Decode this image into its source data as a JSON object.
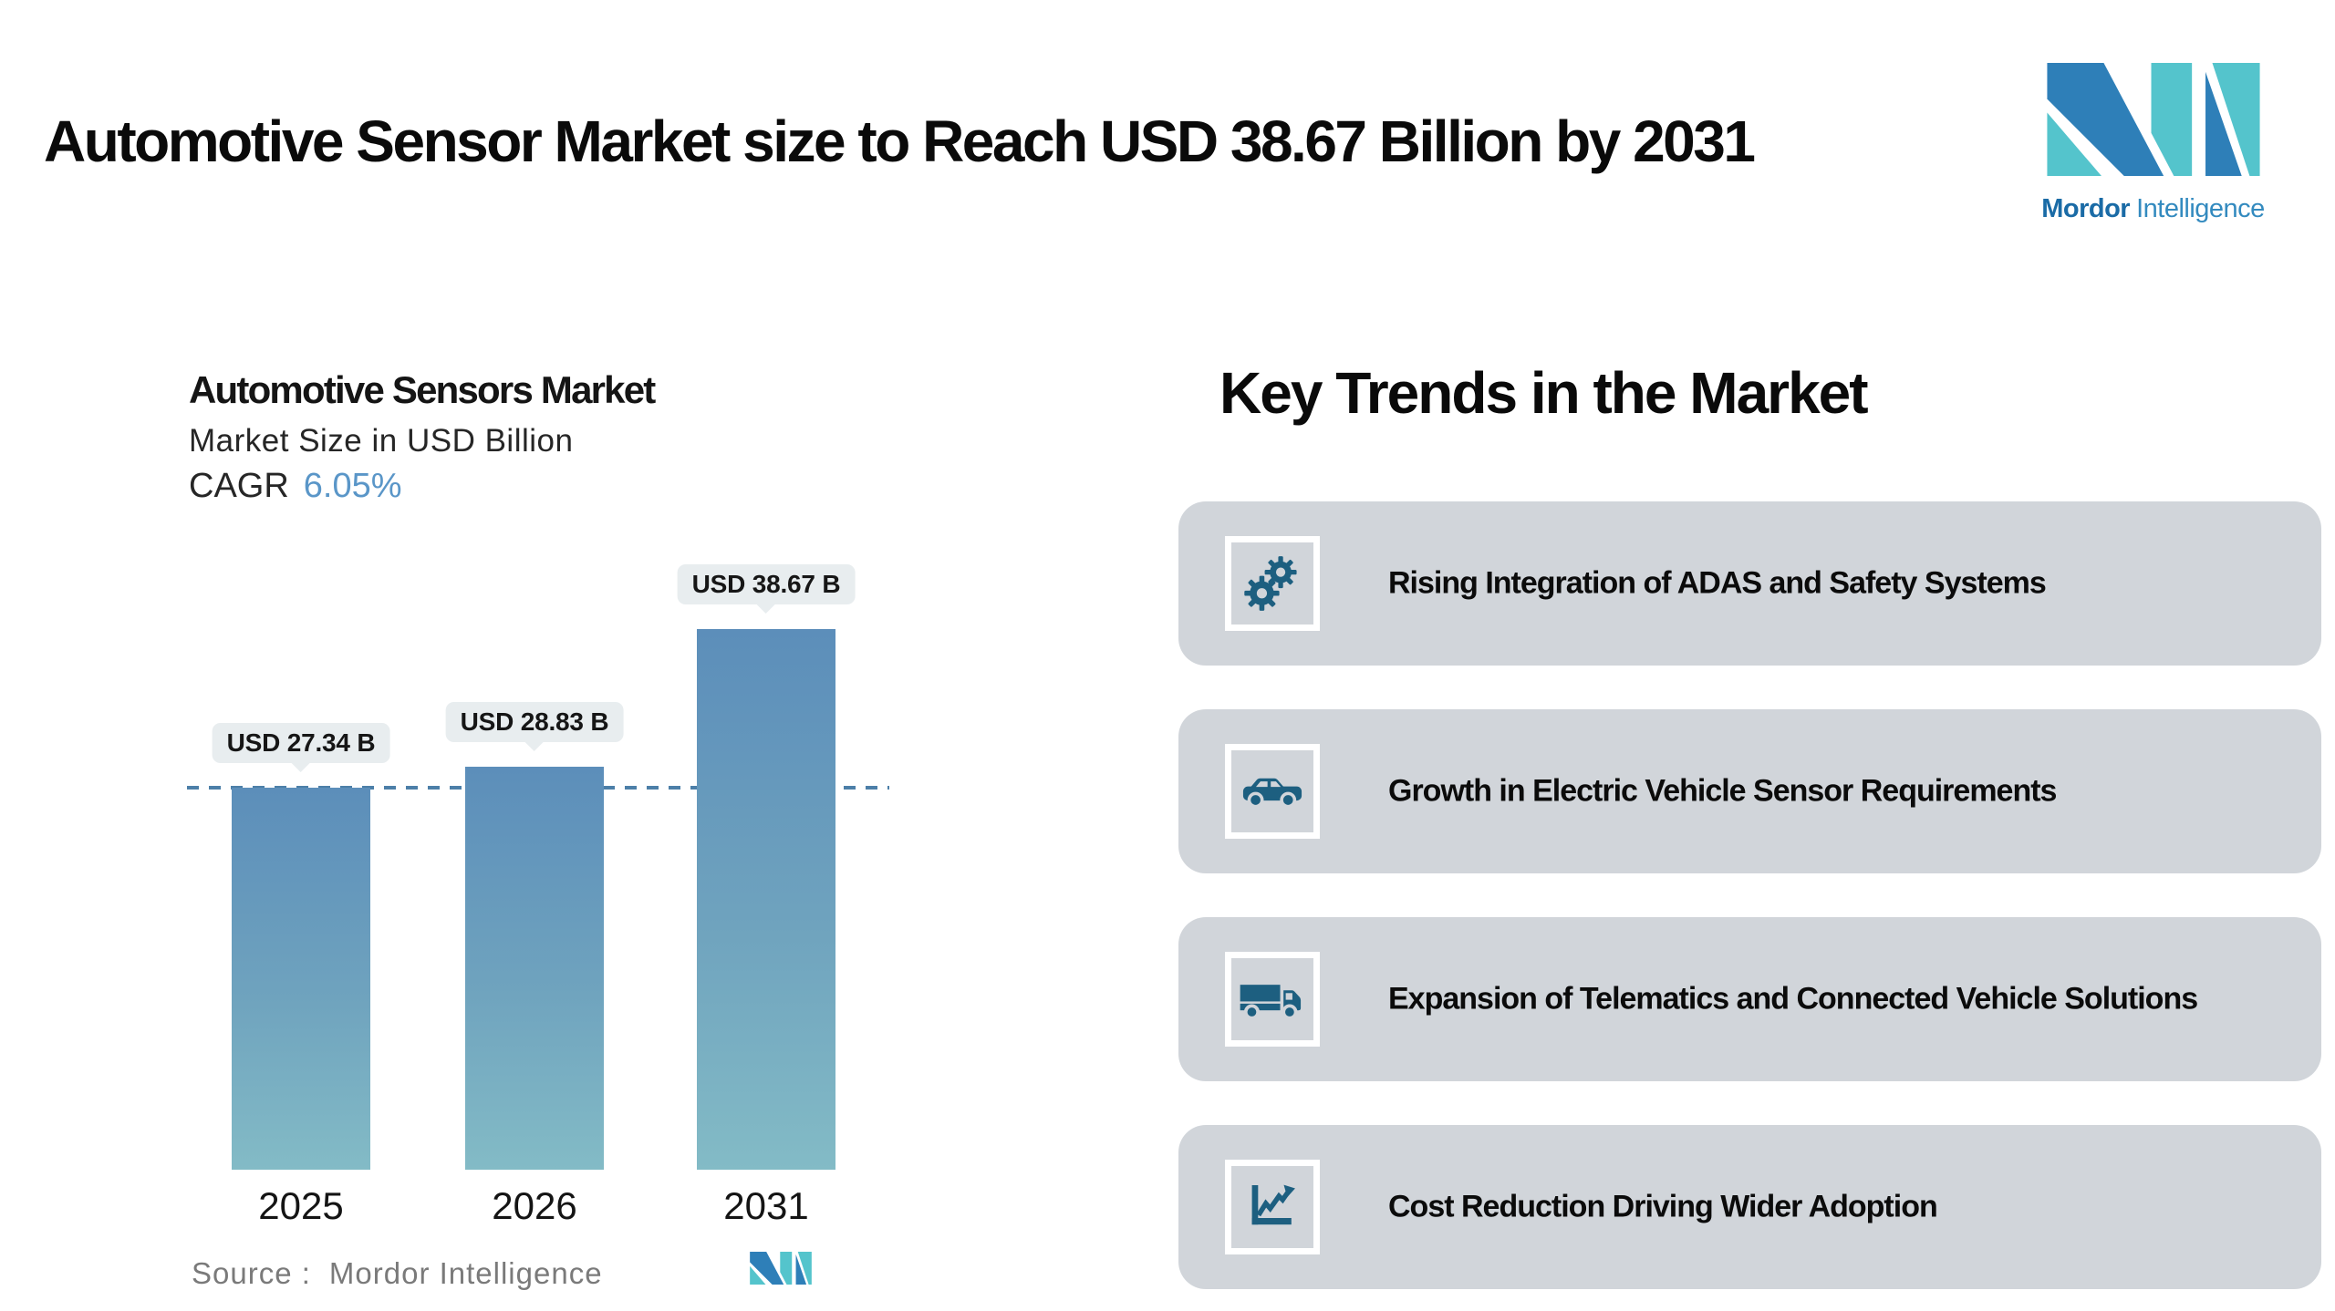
{
  "page": {
    "background": "#ffffff"
  },
  "header": {
    "title": "Automotive Sensor Market size to Reach USD 38.67 Billion by 2031"
  },
  "brand": {
    "name_bold": "Mordor",
    "name_light": "Intelligence",
    "colors": {
      "blue": "#2E7FB8",
      "teal": "#54C4CC",
      "text_bold": "#1A6BA6",
      "text_light": "#338ABF"
    }
  },
  "chart_card": {
    "title": "Automotive Sensors Market",
    "subtitle": "Market Size in USD Billion",
    "cagr_label": "CAGR",
    "cagr_value": "6.05%",
    "cagr_value_color": "#5A96C8",
    "source_label": "Source :",
    "source_value": "Mordor Intelligence"
  },
  "chart_data": {
    "type": "bar",
    "title": "Automotive Sensors Market",
    "subtitle": "Market Size in USD Billion",
    "cagr": "6.05%",
    "categories": [
      "2025",
      "2026",
      "2031"
    ],
    "values": [
      27.34,
      28.83,
      38.67
    ],
    "value_labels": [
      "USD 27.34 B",
      "USD 28.83 B",
      "USD 38.67 B"
    ],
    "unit": "USD Billion",
    "xlabel": "",
    "ylabel": "",
    "ylim": [
      0,
      44
    ],
    "grid": false,
    "legend": "none",
    "bar_color_top": "#5C8EBA",
    "bar_color_mid": "#6FA3BE",
    "bar_color_bottom": "#83BBC6",
    "bubble_bg": "#E8EDEF",
    "reference_line_value": 27.34,
    "reference_line_style": "dashed",
    "reference_line_color": "#4C7FA8"
  },
  "trends": {
    "heading": "Key Trends in the Market",
    "card_bg": "#D1D5DA",
    "icon_color": "#1D5F80",
    "cards": [
      {
        "icon": "gears-icon",
        "label": "Rising Integration of ADAS and Safety Systems"
      },
      {
        "icon": "car-icon",
        "label": "Growth in Electric Vehicle Sensor Requirements"
      },
      {
        "icon": "truck-icon",
        "label": "Expansion of Telematics and Connected Vehicle Solutions"
      },
      {
        "icon": "line-chart-icon",
        "label": "Cost Reduction Driving Wider Adoption"
      }
    ]
  }
}
